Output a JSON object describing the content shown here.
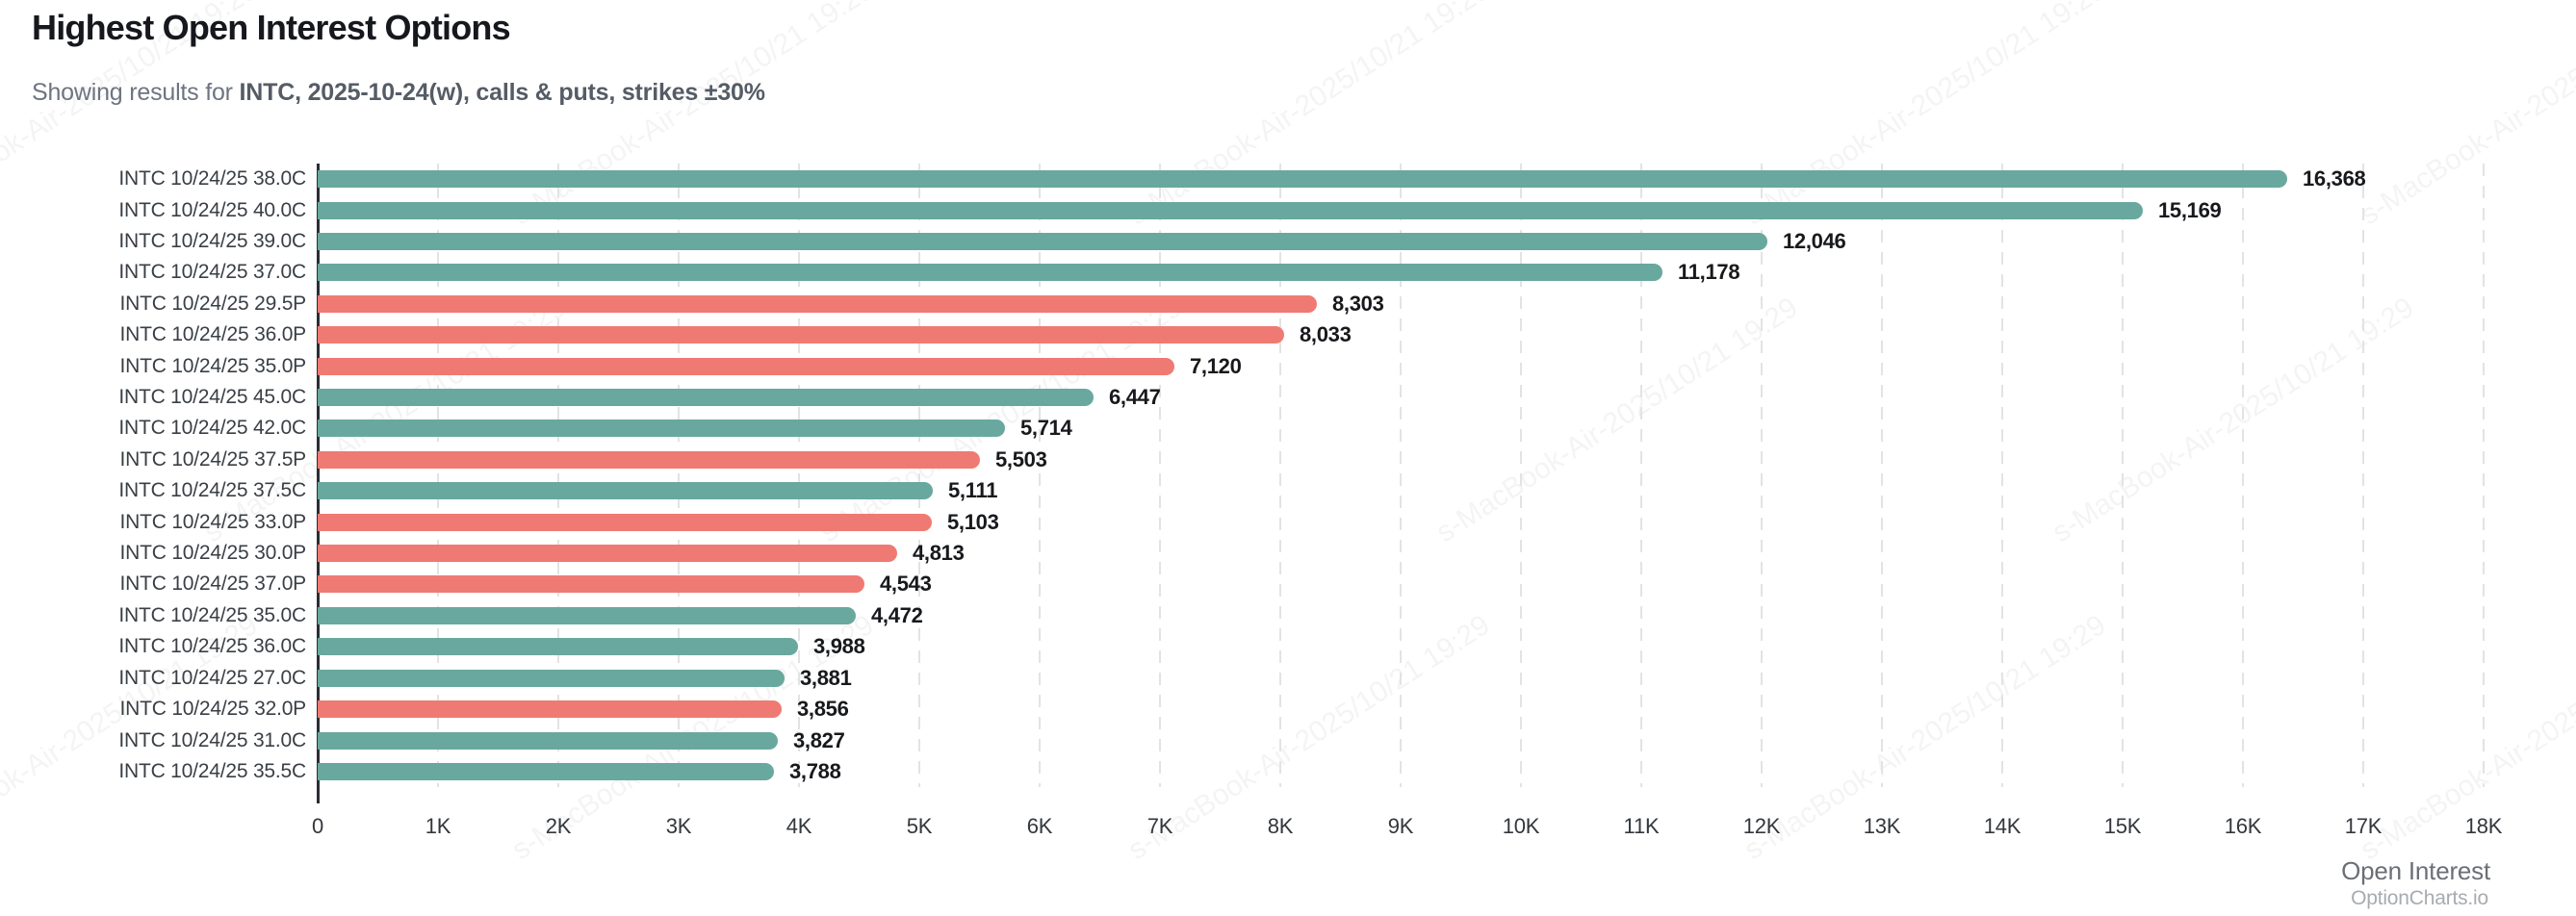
{
  "header": {
    "title": "Highest Open Interest Options",
    "subtitle_prefix": "Showing results for ",
    "subtitle_bold": "INTC, 2025-10-24(w), calls & puts, strikes ±30%"
  },
  "chart_data": {
    "type": "bar",
    "orientation": "horizontal",
    "title": "Highest Open Interest Options",
    "categories": [
      "INTC 10/24/25 38.0C",
      "INTC 10/24/25 40.0C",
      "INTC 10/24/25 39.0C",
      "INTC 10/24/25 37.0C",
      "INTC 10/24/25 29.5P",
      "INTC 10/24/25 36.0P",
      "INTC 10/24/25 35.0P",
      "INTC 10/24/25 45.0C",
      "INTC 10/24/25 42.0C",
      "INTC 10/24/25 37.5P",
      "INTC 10/24/25 37.5C",
      "INTC 10/24/25 33.0P",
      "INTC 10/24/25 30.0P",
      "INTC 10/24/25 37.0P",
      "INTC 10/24/25 35.0C",
      "INTC 10/24/25 36.0C",
      "INTC 10/24/25 27.0C",
      "INTC 10/24/25 32.0P",
      "INTC 10/24/25 31.0C",
      "INTC 10/24/25 35.5C"
    ],
    "values": [
      16368,
      15169,
      12046,
      11178,
      8303,
      8033,
      7120,
      6447,
      5714,
      5503,
      5111,
      5103,
      4813,
      4543,
      4472,
      3988,
      3881,
      3856,
      3827,
      3788
    ],
    "display_values": [
      "16,368",
      "15,169",
      "12,046",
      "11,178",
      "8,303",
      "8,033",
      "7,120",
      "6,447",
      "5,714",
      "5,503",
      "5,111",
      "5,103",
      "4,813",
      "4,543",
      "4,472",
      "3,988",
      "3,881",
      "3,856",
      "3,827",
      "3,788"
    ],
    "series_types": [
      "call",
      "call",
      "call",
      "call",
      "put",
      "put",
      "put",
      "call",
      "call",
      "put",
      "call",
      "put",
      "put",
      "put",
      "call",
      "call",
      "call",
      "put",
      "call",
      "call"
    ],
    "colors": {
      "call": "#69A89E",
      "put": "#EF7A73"
    },
    "xlabel": "Open Interest",
    "ylabel": "",
    "x_ticks": [
      "0",
      "1K",
      "2K",
      "3K",
      "4K",
      "5K",
      "6K",
      "7K",
      "8K",
      "9K",
      "10K",
      "11K",
      "12K",
      "13K",
      "14K",
      "15K",
      "16K",
      "17K",
      "18K"
    ],
    "xlim": [
      0,
      18000
    ],
    "grid": "vertical-dashed",
    "legend": "none"
  },
  "footer": {
    "branding": "OptionCharts.io"
  },
  "watermark": {
    "text": "s-MacBook-Air-2025/10/21 19:29"
  }
}
